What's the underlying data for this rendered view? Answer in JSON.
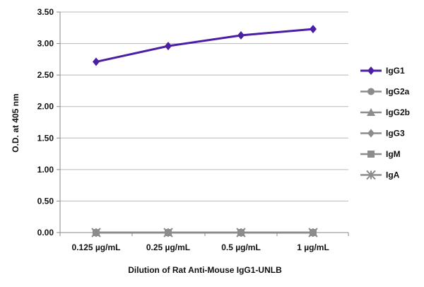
{
  "chart_data": {
    "type": "line",
    "xlabel": "Dilution of Rat Anti-Mouse IgG1-UNLB",
    "ylabel": "O.D. at 405 nm",
    "categories": [
      "0.125 µg/mL",
      "0.25 µg/mL",
      "0.5 µg/mL",
      "1 µg/mL"
    ],
    "ylim": [
      0,
      3.5
    ],
    "yticks": [
      "0.00",
      "0.50",
      "1.00",
      "1.50",
      "2.00",
      "2.50",
      "3.00",
      "3.50"
    ],
    "grid": "horizontal",
    "legend_position": "right",
    "series": [
      {
        "name": "IgG1",
        "values": [
          2.71,
          2.96,
          3.13,
          3.23
        ],
        "color": "#4b1fa3",
        "marker": "diamond"
      },
      {
        "name": "IgG2a",
        "values": [
          0.0,
          0.0,
          0.0,
          0.0
        ],
        "color": "#8c8c8c",
        "marker": "circle"
      },
      {
        "name": "IgG2b",
        "values": [
          0.0,
          0.0,
          0.0,
          0.0
        ],
        "color": "#8c8c8c",
        "marker": "triangle"
      },
      {
        "name": "IgG3",
        "values": [
          0.0,
          0.0,
          0.0,
          0.0
        ],
        "color": "#8c8c8c",
        "marker": "diamond"
      },
      {
        "name": "IgM",
        "values": [
          0.0,
          0.0,
          0.0,
          0.0
        ],
        "color": "#8c8c8c",
        "marker": "square"
      },
      {
        "name": "IgA",
        "values": [
          0.0,
          0.0,
          0.0,
          0.0
        ],
        "color": "#8c8c8c",
        "marker": "star"
      }
    ]
  }
}
